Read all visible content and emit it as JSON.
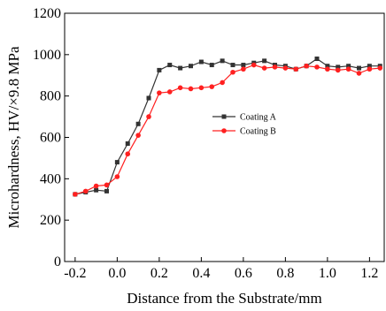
{
  "chart_data": {
    "type": "line",
    "title": "",
    "xlabel": "Distance from the Substrate/mm",
    "ylabel": "Microhardness, HV/×9.8 MPa",
    "xlim": [
      -0.25,
      1.27
    ],
    "ylim": [
      0,
      1200
    ],
    "x_ticks": [
      -0.2,
      0.0,
      0.2,
      0.4,
      0.6,
      0.8,
      1.0,
      1.2
    ],
    "x_tick_labels": [
      "-0.2",
      "0.0",
      "0.2",
      "0.4",
      "0.6",
      "0.8",
      "1.0",
      "1.2"
    ],
    "y_ticks": [
      0,
      200,
      400,
      600,
      800,
      1000,
      1200
    ],
    "y_tick_labels": [
      "0",
      "200",
      "400",
      "600",
      "800",
      "1000",
      "1200"
    ],
    "grid": false,
    "legend_position": "center-right",
    "series": [
      {
        "name": "Coating A",
        "color": "#333333",
        "marker": "square",
        "x": [
          -0.2,
          -0.15,
          -0.1,
          -0.05,
          0.0,
          0.05,
          0.1,
          0.15,
          0.2,
          0.25,
          0.3,
          0.35,
          0.4,
          0.45,
          0.5,
          0.55,
          0.6,
          0.65,
          0.7,
          0.75,
          0.8,
          0.85,
          0.9,
          0.95,
          1.0,
          1.05,
          1.1,
          1.15,
          1.2,
          1.25
        ],
        "y": [
          325,
          335,
          345,
          340,
          480,
          570,
          665,
          790,
          925,
          950,
          935,
          945,
          965,
          950,
          970,
          950,
          950,
          960,
          970,
          950,
          945,
          930,
          945,
          980,
          945,
          940,
          945,
          935,
          945,
          945
        ]
      },
      {
        "name": "Coating B",
        "color": "#ff2020",
        "marker": "circle",
        "x": [
          -0.2,
          -0.15,
          -0.1,
          -0.05,
          0.0,
          0.05,
          0.1,
          0.15,
          0.2,
          0.25,
          0.3,
          0.35,
          0.4,
          0.45,
          0.5,
          0.55,
          0.6,
          0.65,
          0.7,
          0.75,
          0.8,
          0.85,
          0.9,
          0.95,
          1.0,
          1.05,
          1.1,
          1.15,
          1.2,
          1.25
        ],
        "y": [
          325,
          340,
          365,
          370,
          410,
          520,
          610,
          700,
          815,
          820,
          840,
          835,
          840,
          845,
          865,
          915,
          930,
          950,
          935,
          940,
          935,
          930,
          945,
          940,
          930,
          925,
          930,
          910,
          930,
          935
        ]
      }
    ]
  }
}
